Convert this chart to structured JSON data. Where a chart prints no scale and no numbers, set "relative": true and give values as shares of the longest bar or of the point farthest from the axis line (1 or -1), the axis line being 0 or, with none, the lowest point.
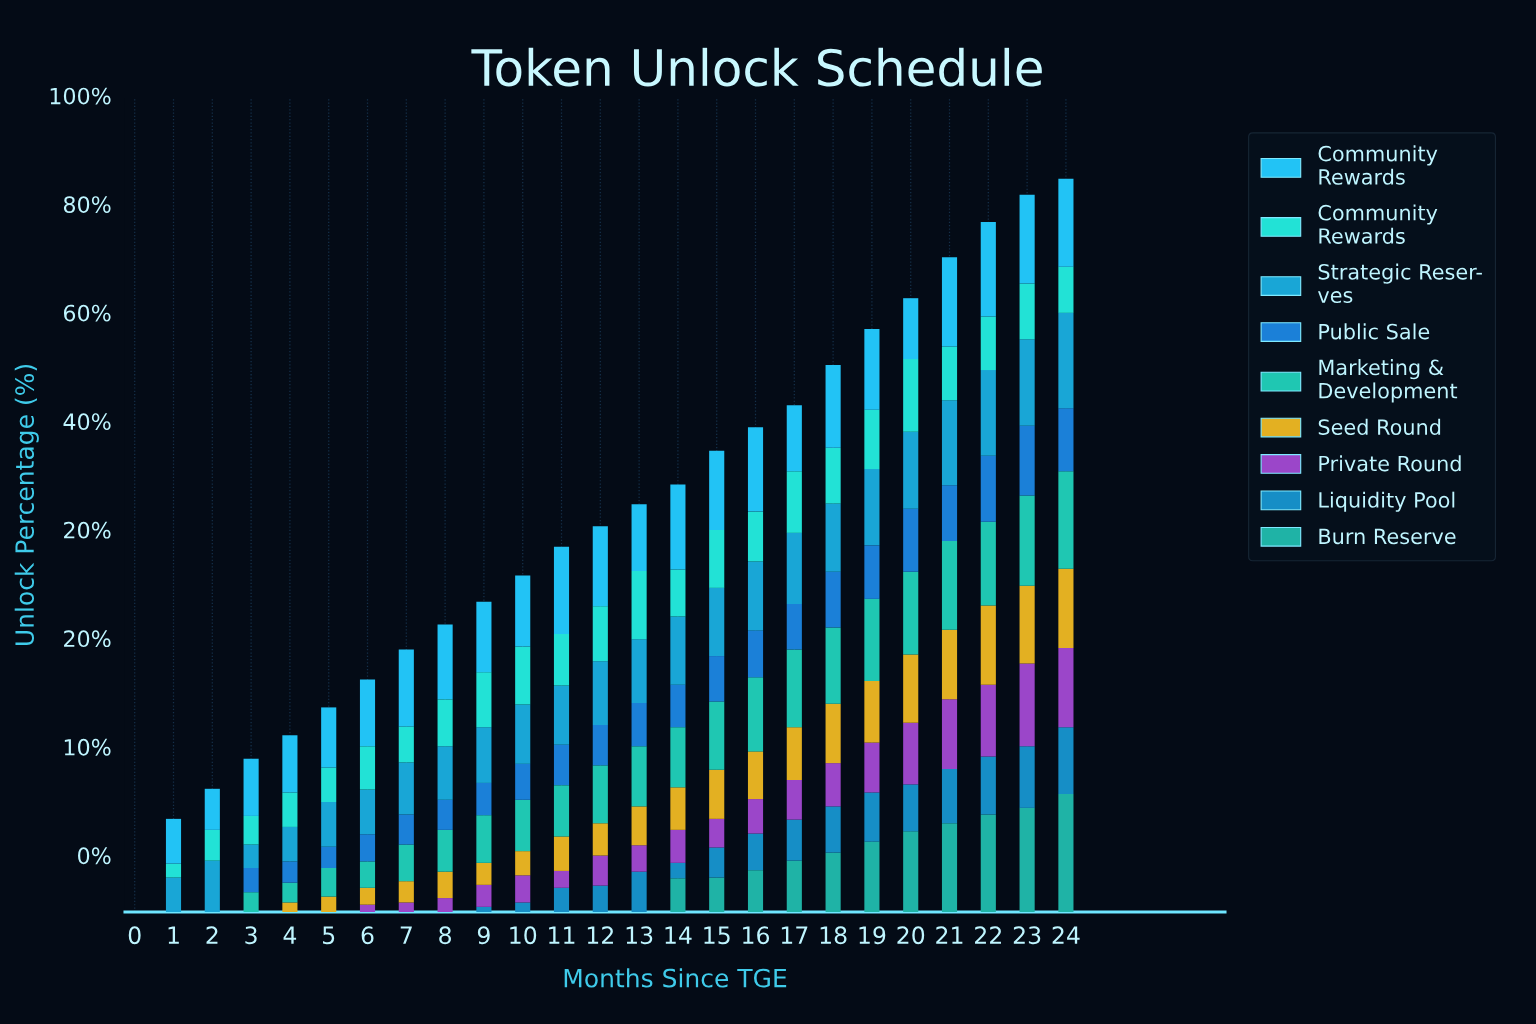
{
  "chart_data": {
    "type": "bar",
    "title": "Token Unlock Schedule",
    "xlabel": "Months Since TGE",
    "ylabel": "Unlock Percentage (%)",
    "categories": [
      "0",
      "1",
      "2",
      "3",
      "4",
      "5",
      "6",
      "7",
      "8",
      "9",
      "10",
      "11",
      "12",
      "13",
      "14",
      "15",
      "16",
      "17",
      "18",
      "19",
      "20",
      "21",
      "22",
      "23",
      "24"
    ],
    "stacked": true,
    "relative": true,
    "grid": "x",
    "legend": "top right",
    "annotations": [
      "100%",
      "80%",
      "60%",
      "40%",
      "20%",
      "20%",
      "10%",
      "0%"
    ],
    "series": [
      {
        "name": "Burn Reserve",
        "color": "#1fb3a6",
        "values": [
          null,
          null,
          null,
          null,
          null,
          null,
          null,
          null,
          null,
          null,
          null,
          null,
          null,
          null,
          0.046,
          0.047,
          0.057,
          0.07,
          0.081,
          0.096,
          0.11,
          0.121,
          0.133,
          0.142,
          0.161
        ]
      },
      {
        "name": "Liquidity Pool",
        "color": "#168ec6",
        "values": [
          null,
          null,
          null,
          null,
          null,
          null,
          null,
          null,
          null,
          0.007,
          0.013,
          0.033,
          0.036,
          0.055,
          0.021,
          0.041,
          0.05,
          0.056,
          0.063,
          0.067,
          0.064,
          0.074,
          0.079,
          0.084,
          0.091
        ]
      },
      {
        "name": "Private Round",
        "color": "#9b46c9",
        "values": [
          null,
          null,
          null,
          null,
          null,
          null,
          0.01,
          0.013,
          0.019,
          0.03,
          0.037,
          0.023,
          0.041,
          0.036,
          0.045,
          0.039,
          0.047,
          0.054,
          0.059,
          0.068,
          0.084,
          0.095,
          0.098,
          0.113,
          0.108
        ]
      },
      {
        "name": "Seed Round",
        "color": "#e3b022",
        "values": [
          null,
          null,
          null,
          null,
          0.013,
          0.021,
          0.023,
          0.029,
          0.036,
          0.03,
          0.033,
          0.047,
          0.044,
          0.053,
          0.058,
          0.067,
          0.065,
          0.072,
          0.081,
          0.084,
          0.093,
          0.095,
          0.108,
          0.106,
          0.108
        ]
      },
      {
        "name": "Marketing &\nDevelopment",
        "color": "#1fc7b2",
        "values": [
          null,
          null,
          null,
          0.027,
          0.027,
          0.039,
          0.036,
          0.05,
          0.057,
          0.065,
          0.07,
          0.07,
          0.079,
          0.082,
          0.082,
          0.093,
          0.101,
          0.106,
          0.104,
          0.112,
          0.113,
          0.121,
          0.114,
          0.123,
          0.133
        ]
      },
      {
        "name": "Public Sale",
        "color": "#1b80d8",
        "values": [
          null,
          null,
          null,
          0.033,
          0.029,
          0.029,
          0.037,
          0.041,
          0.041,
          0.044,
          0.049,
          0.055,
          0.055,
          0.059,
          0.058,
          0.062,
          0.064,
          0.062,
          0.076,
          0.073,
          0.086,
          0.076,
          0.09,
          0.095,
          0.086
        ]
      },
      {
        "name": "Strategic Reser-\nves",
        "color": "#19a6d6",
        "values": [
          null,
          0.047,
          0.07,
          0.032,
          0.047,
          0.061,
          0.061,
          0.071,
          0.073,
          0.076,
          0.081,
          0.081,
          0.087,
          0.087,
          0.093,
          0.093,
          0.094,
          0.097,
          0.093,
          0.104,
          0.105,
          0.116,
          0.117,
          0.118,
          0.13
        ]
      },
      {
        "name": "Community\nRewards",
        "color": "#22e2d6",
        "values": [
          null,
          0.019,
          0.042,
          0.039,
          0.047,
          0.047,
          0.059,
          0.049,
          0.064,
          0.075,
          0.079,
          0.07,
          0.075,
          0.093,
          0.064,
          0.079,
          0.068,
          0.084,
          0.076,
          0.081,
          0.099,
          0.073,
          0.073,
          0.076,
          0.063
        ]
      },
      {
        "name": "Community\nRewards",
        "color": "#22c3f5",
        "values": [
          null,
          0.061,
          0.056,
          0.078,
          0.078,
          0.082,
          0.091,
          0.105,
          0.102,
          0.096,
          0.097,
          0.119,
          0.109,
          0.091,
          0.116,
          0.108,
          0.115,
          0.09,
          0.113,
          0.11,
          0.083,
          0.122,
          0.129,
          0.121,
          0.12
        ]
      }
    ]
  }
}
